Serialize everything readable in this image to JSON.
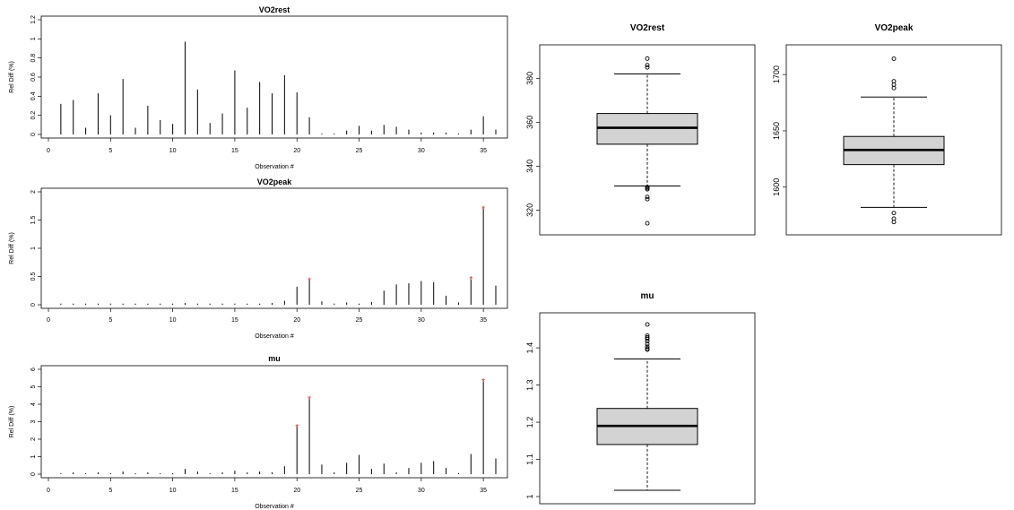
{
  "chart_data": [
    {
      "type": "bar",
      "subtype": "spike",
      "title": "VO2rest",
      "xlabel": "Observation #",
      "ylabel": "Rel Diff (%)",
      "xlim": [
        0,
        36
      ],
      "ylim": [
        0,
        1.2
      ],
      "xticks": [
        0,
        5,
        10,
        15,
        20,
        25,
        30,
        35
      ],
      "yticks": [
        0.0,
        0.2,
        0.4,
        0.6,
        0.8,
        1.0,
        1.2
      ],
      "x": [
        1,
        2,
        3,
        4,
        5,
        6,
        7,
        8,
        9,
        10,
        11,
        12,
        13,
        14,
        15,
        16,
        17,
        18,
        19,
        20,
        21,
        22,
        23,
        24,
        25,
        26,
        27,
        28,
        29,
        30,
        31,
        32,
        33,
        34,
        35,
        36
      ],
      "values": [
        0.32,
        0.36,
        0.07,
        0.43,
        0.2,
        0.58,
        0.07,
        0.3,
        0.15,
        0.11,
        0.97,
        0.47,
        0.12,
        0.22,
        0.67,
        0.28,
        0.55,
        0.43,
        0.62,
        0.44,
        0.18,
        0.01,
        0.01,
        0.04,
        0.09,
        0.04,
        0.1,
        0.08,
        0.05,
        0.02,
        0.02,
        0.02,
        0.01,
        0.05,
        0.19,
        0.05
      ],
      "highlighted": []
    },
    {
      "type": "bar",
      "subtype": "spike",
      "title": "VO2peak",
      "xlabel": "Observation #",
      "ylabel": "Rel Diff (%)",
      "xlim": [
        0,
        36
      ],
      "ylim": [
        0,
        2.0
      ],
      "xticks": [
        0,
        5,
        10,
        15,
        20,
        25,
        30,
        35
      ],
      "yticks": [
        0.0,
        0.5,
        1.0,
        1.5,
        2.0
      ],
      "x": [
        1,
        2,
        3,
        4,
        5,
        6,
        7,
        8,
        9,
        10,
        11,
        12,
        13,
        14,
        15,
        16,
        17,
        18,
        19,
        20,
        21,
        22,
        23,
        24,
        25,
        26,
        27,
        28,
        29,
        30,
        31,
        32,
        33,
        34,
        35,
        36
      ],
      "values": [
        0.02,
        0.02,
        0.02,
        0.02,
        0.02,
        0.02,
        0.02,
        0.02,
        0.02,
        0.02,
        0.03,
        0.02,
        0.02,
        0.02,
        0.02,
        0.02,
        0.02,
        0.03,
        0.07,
        0.32,
        0.43,
        0.06,
        0.02,
        0.04,
        0.02,
        0.05,
        0.25,
        0.36,
        0.38,
        0.42,
        0.4,
        0.16,
        0.04,
        0.45,
        1.7,
        0.34
      ],
      "highlighted": [
        21,
        34,
        35
      ]
    },
    {
      "type": "bar",
      "subtype": "spike",
      "title": "mu",
      "xlabel": "Observation #",
      "ylabel": "Rel Diff (%)",
      "xlim": [
        0,
        36
      ],
      "ylim": [
        0,
        6
      ],
      "xticks": [
        0,
        5,
        10,
        15,
        20,
        25,
        30,
        35
      ],
      "yticks": [
        0,
        1,
        2,
        3,
        4,
        5,
        6
      ],
      "x": [
        1,
        2,
        3,
        4,
        5,
        6,
        7,
        8,
        9,
        10,
        11,
        12,
        13,
        14,
        15,
        16,
        17,
        18,
        19,
        20,
        21,
        22,
        23,
        24,
        25,
        26,
        27,
        28,
        29,
        30,
        31,
        32,
        33,
        34,
        35,
        36
      ],
      "values": [
        0.05,
        0.1,
        0.05,
        0.1,
        0.05,
        0.15,
        0.05,
        0.1,
        0.05,
        0.05,
        0.3,
        0.15,
        0.05,
        0.1,
        0.2,
        0.1,
        0.15,
        0.1,
        0.45,
        2.7,
        4.3,
        0.55,
        0.1,
        0.65,
        1.1,
        0.3,
        0.6,
        0.1,
        0.35,
        0.65,
        0.75,
        0.35,
        0.05,
        1.15,
        5.3,
        0.9
      ],
      "highlighted": [
        20,
        21,
        35
      ]
    },
    {
      "type": "boxplot",
      "title": "VO2rest",
      "ylim": [
        312,
        392
      ],
      "yticks": [
        320,
        340,
        360,
        380
      ],
      "whisker_low": 331,
      "q1": 350,
      "median": 357.5,
      "q3": 364,
      "whisker_high": 382,
      "outliers": [
        389,
        386,
        385,
        330.5,
        330,
        329.5,
        326,
        325,
        314
      ]
    },
    {
      "type": "boxplot",
      "title": "VO2peak",
      "ylim": [
        1564,
        1720
      ],
      "yticks": [
        1600,
        1650,
        1700
      ],
      "whisker_low": 1582,
      "q1": 1620,
      "median": 1633,
      "q3": 1645,
      "whisker_high": 1680,
      "outliers": [
        1714,
        1694,
        1691,
        1688,
        1577,
        1572,
        1569
      ]
    },
    {
      "type": "boxplot",
      "title": "mu",
      "ylim": [
        1.0,
        1.475
      ],
      "yticks": [
        1.0,
        1.1,
        1.2,
        1.3,
        1.4
      ],
      "whisker_low": 1.017,
      "q1": 1.14,
      "median": 1.19,
      "q3": 1.237,
      "whisker_high": 1.37,
      "outliers": [
        1.463,
        1.433,
        1.428,
        1.424,
        1.418,
        1.41,
        1.403,
        1.398,
        1.395
      ]
    }
  ]
}
